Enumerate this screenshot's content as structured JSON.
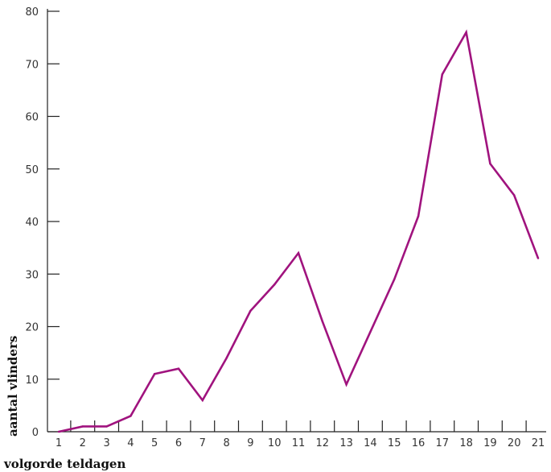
{
  "chart_data": {
    "type": "line",
    "xlabel": "volgorde teldagen",
    "ylabel": "aantal vlinders",
    "x": [
      1,
      2,
      3,
      4,
      5,
      6,
      7,
      8,
      9,
      10,
      11,
      12,
      13,
      14,
      15,
      16,
      17,
      18,
      19,
      20,
      21
    ],
    "x_tick_labels": [
      "1",
      "2",
      "3",
      "4",
      "5",
      "6",
      "7",
      "8",
      "9",
      "10",
      "11",
      "12",
      "13",
      "14",
      "15",
      "16",
      "17",
      "18",
      "19",
      "20",
      "21"
    ],
    "y_tick_labels": [
      "0",
      "10",
      "20",
      "30",
      "40",
      "50",
      "60",
      "70",
      "80"
    ],
    "y_ticks": [
      0,
      10,
      20,
      30,
      40,
      50,
      60,
      70,
      80
    ],
    "ylim": [
      0,
      80
    ],
    "series": [
      {
        "values": [
          0,
          1,
          1,
          3,
          11,
          12,
          6,
          14,
          23,
          28,
          34,
          21,
          9,
          19,
          29,
          41,
          68,
          76,
          51,
          45,
          33
        ]
      }
    ],
    "grid": false,
    "colors": {
      "line": "#a0137e"
    }
  }
}
